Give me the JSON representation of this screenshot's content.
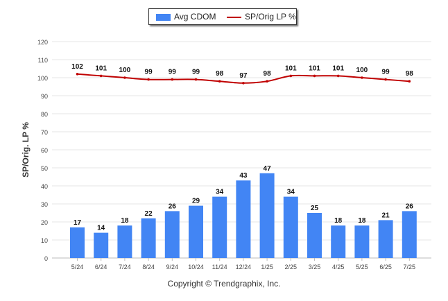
{
  "chart_data": {
    "type": "bar",
    "categories": [
      "5/24",
      "6/24",
      "7/24",
      "8/24",
      "9/24",
      "10/24",
      "11/24",
      "12/24",
      "1/25",
      "2/25",
      "3/25",
      "4/25",
      "5/25",
      "6/25",
      "7/25"
    ],
    "series": [
      {
        "name": "Avg CDOM",
        "type": "bar",
        "color": "#4285F4",
        "values": [
          17,
          14,
          18,
          22,
          26,
          29,
          34,
          43,
          47,
          34,
          25,
          18,
          18,
          21,
          26
        ]
      },
      {
        "name": "SP/Orig LP %",
        "type": "line",
        "color": "#C00000",
        "values": [
          102,
          101,
          100,
          99,
          99,
          99,
          98,
          97,
          98,
          101,
          101,
          101,
          100,
          99,
          98
        ]
      }
    ],
    "ylabel": "SP/Orig. LP %",
    "xlabel": "",
    "ylim": [
      0,
      120
    ],
    "yticks": [
      0,
      10,
      20,
      30,
      40,
      50,
      60,
      70,
      80,
      90,
      100,
      110,
      120
    ],
    "grid": true,
    "legend": "top-center"
  },
  "legend": {
    "bar_label": "Avg CDOM",
    "line_label": "SP/Orig LP %"
  },
  "footer": {
    "copyright": "Copyright © Trendgraphix, Inc."
  }
}
